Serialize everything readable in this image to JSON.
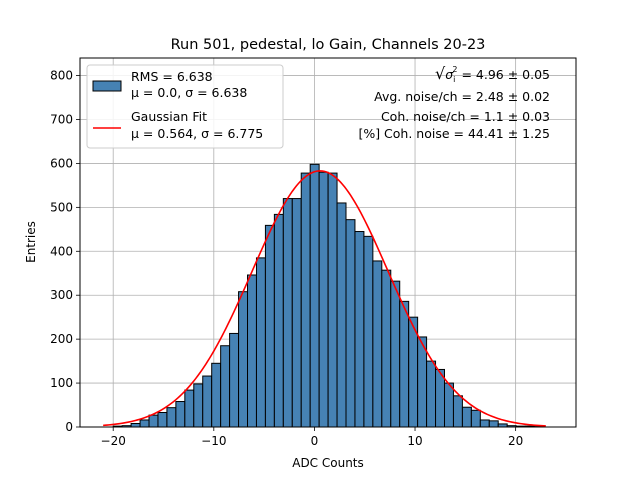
{
  "chart_data": {
    "type": "bar",
    "title": "Run 501, pedestal, lo Gain, Channels 20-23",
    "xlabel": "ADC Counts",
    "ylabel": "Entries",
    "xlim": [
      -23.3,
      26.0
    ],
    "ylim": [
      0,
      840
    ],
    "xticks": [
      -20,
      -10,
      0,
      10,
      20
    ],
    "xtick_labels": [
      "−20",
      "−10",
      "0",
      "10",
      "20"
    ],
    "yticks": [
      0,
      100,
      200,
      300,
      400,
      500,
      600,
      700,
      800
    ],
    "ytick_labels": [
      "0",
      "100",
      "200",
      "300",
      "400",
      "500",
      "600",
      "700",
      "800"
    ],
    "grid": true,
    "legend_position": "top-left",
    "histogram": {
      "bin_width": 0.889,
      "bin_left_edges": [
        -20.0,
        -19.11,
        -18.22,
        -17.33,
        -16.44,
        -15.55,
        -14.66,
        -13.77,
        -12.88,
        -11.99,
        -11.1,
        -10.21,
        -9.32,
        -8.43,
        -7.54,
        -6.65,
        -5.76,
        -4.87,
        -3.98,
        -3.09,
        -2.2,
        -1.31,
        -0.42,
        0.47,
        1.36,
        2.25,
        3.14,
        4.03,
        4.92,
        5.81,
        6.7,
        7.59,
        8.48,
        9.37,
        10.26,
        11.15,
        12.04,
        12.93,
        13.82,
        14.71,
        15.6,
        16.49,
        17.38,
        18.27,
        19.16,
        20.05,
        20.94,
        21.83
      ],
      "counts": [
        2,
        3,
        8,
        16,
        27,
        33,
        44,
        58,
        84,
        98,
        116,
        145,
        185,
        213,
        308,
        346,
        385,
        459,
        484,
        520,
        520,
        578,
        598,
        580,
        578,
        510,
        472,
        445,
        434,
        378,
        357,
        332,
        286,
        250,
        205,
        150,
        131,
        100,
        71,
        45,
        38,
        16,
        14,
        7,
        3,
        2,
        2,
        1
      ],
      "fill_color": "#4682b4",
      "edge_color": "#000000"
    },
    "series": [
      {
        "name": "Gaussian Fit",
        "type": "line",
        "color": "#ff0000",
        "mu": 0.564,
        "sigma": 6.775,
        "amplitude": 583,
        "x_range": [
          -21.0,
          23.0
        ]
      }
    ],
    "legend": [
      {
        "kind": "patch",
        "color": "#4682b4",
        "line1": "RMS = 6.638",
        "line2": "μ = 0.0, σ = 6.638"
      },
      {
        "kind": "line",
        "color": "#ff0000",
        "line1": "Gaussian Fit",
        "line2": "μ = 0.564, σ = 6.775"
      }
    ],
    "annotations": [
      {
        "prefix": "√",
        "symbol": "σ",
        "sup": "2",
        "sub": "i",
        "rest": " = 4.96 ± 0.05"
      },
      {
        "text": "Avg. noise/ch = 2.48 ± 0.02"
      },
      {
        "text": "Coh. noise/ch = 1.1 ± 0.03"
      },
      {
        "text": "[%] Coh. noise = 44.41 ± 1.25"
      }
    ]
  }
}
